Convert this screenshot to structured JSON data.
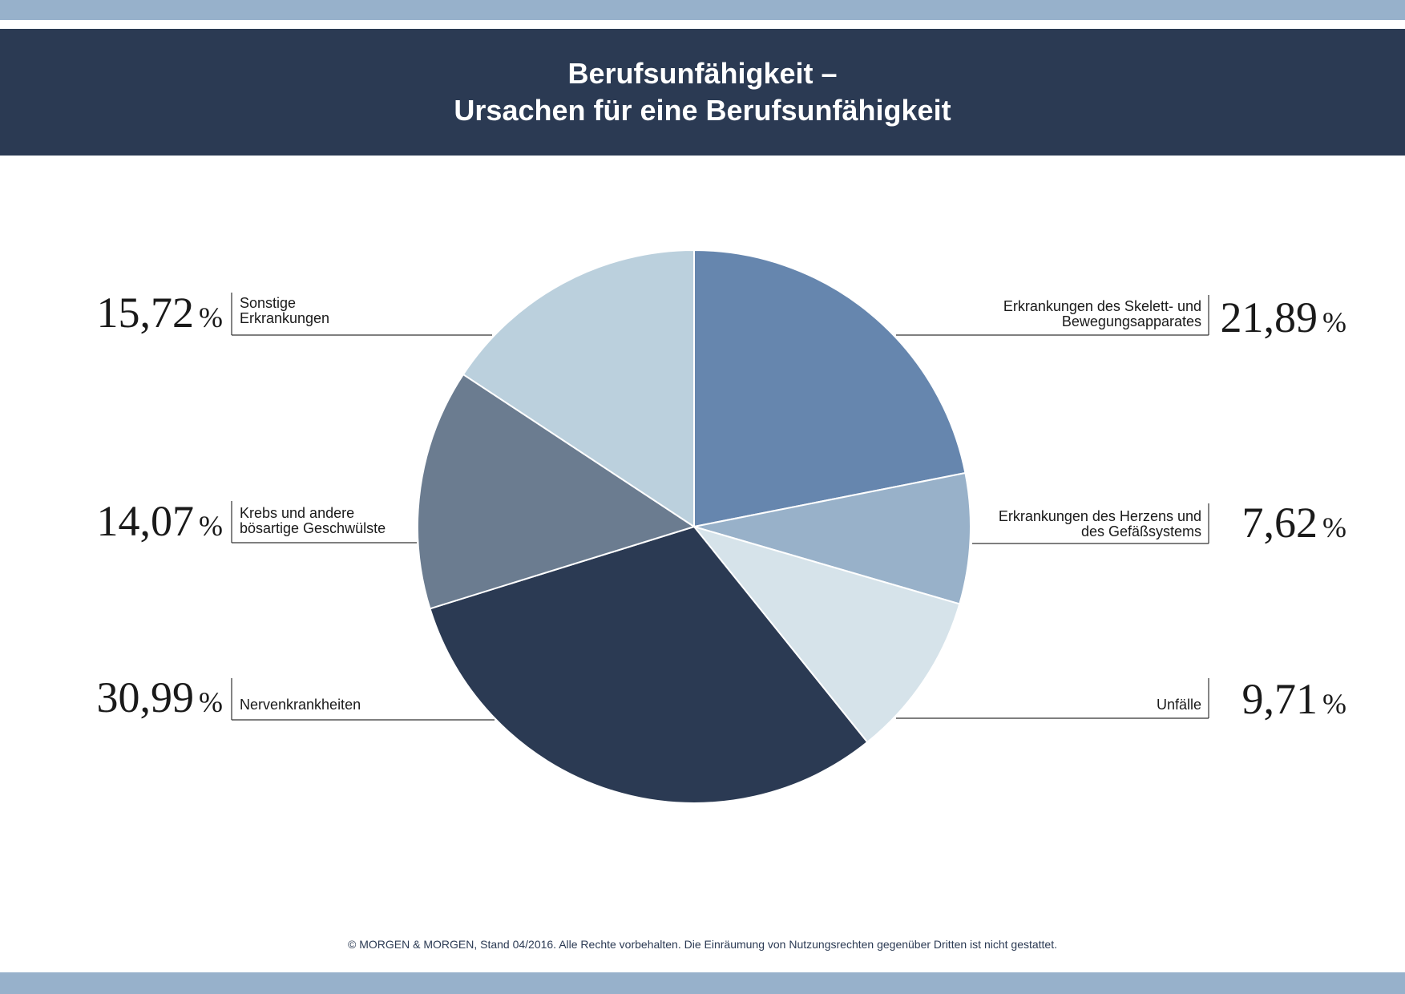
{
  "header": {
    "title_line1": "Berufsunfähigkeit –",
    "title_line2": "Ursachen für eine Berufsunfähigkeit"
  },
  "footer": {
    "text": "© MORGEN & MORGEN, Stand 04/2016. Alle Rechte vorbehalten. Die Einräumung von Nutzungsrechten gegenüber Dritten ist nicht gestattet."
  },
  "colors": {
    "header": "#2b3a53",
    "stripe": "#97b1cb"
  },
  "chart_data": {
    "type": "pie",
    "title": "Berufsunfähigkeit – Ursachen für eine Berufsunfähigkeit",
    "unit": "%",
    "start": "12 o'clock",
    "direction": "clockwise",
    "slices": [
      {
        "label_lines": [
          "Erkrankungen des Skelett- und",
          "Bewegungsapparates"
        ],
        "value": 21.89,
        "value_text": "21,89",
        "color": "#6686ae"
      },
      {
        "label_lines": [
          "Erkrankungen des Herzens und",
          "des Gefäßsystems"
        ],
        "value": 7.62,
        "value_text": "7,62",
        "color": "#98b1c9"
      },
      {
        "label_lines": [
          "Unfälle"
        ],
        "value": 9.71,
        "value_text": "9,71",
        "color": "#d6e3ea"
      },
      {
        "label_lines": [
          "Nervenkrankheiten"
        ],
        "value": 30.99,
        "value_text": "30,99",
        "color": "#2b3a53"
      },
      {
        "label_lines": [
          "Krebs und andere",
          "bösartige Geschwülste"
        ],
        "value": 14.07,
        "value_text": "14,07",
        "color": "#6b7c90"
      },
      {
        "label_lines": [
          "Sonstige",
          "Erkrankungen"
        ],
        "value": 15.72,
        "value_text": "15,72",
        "color": "#bbd0dd"
      }
    ]
  }
}
